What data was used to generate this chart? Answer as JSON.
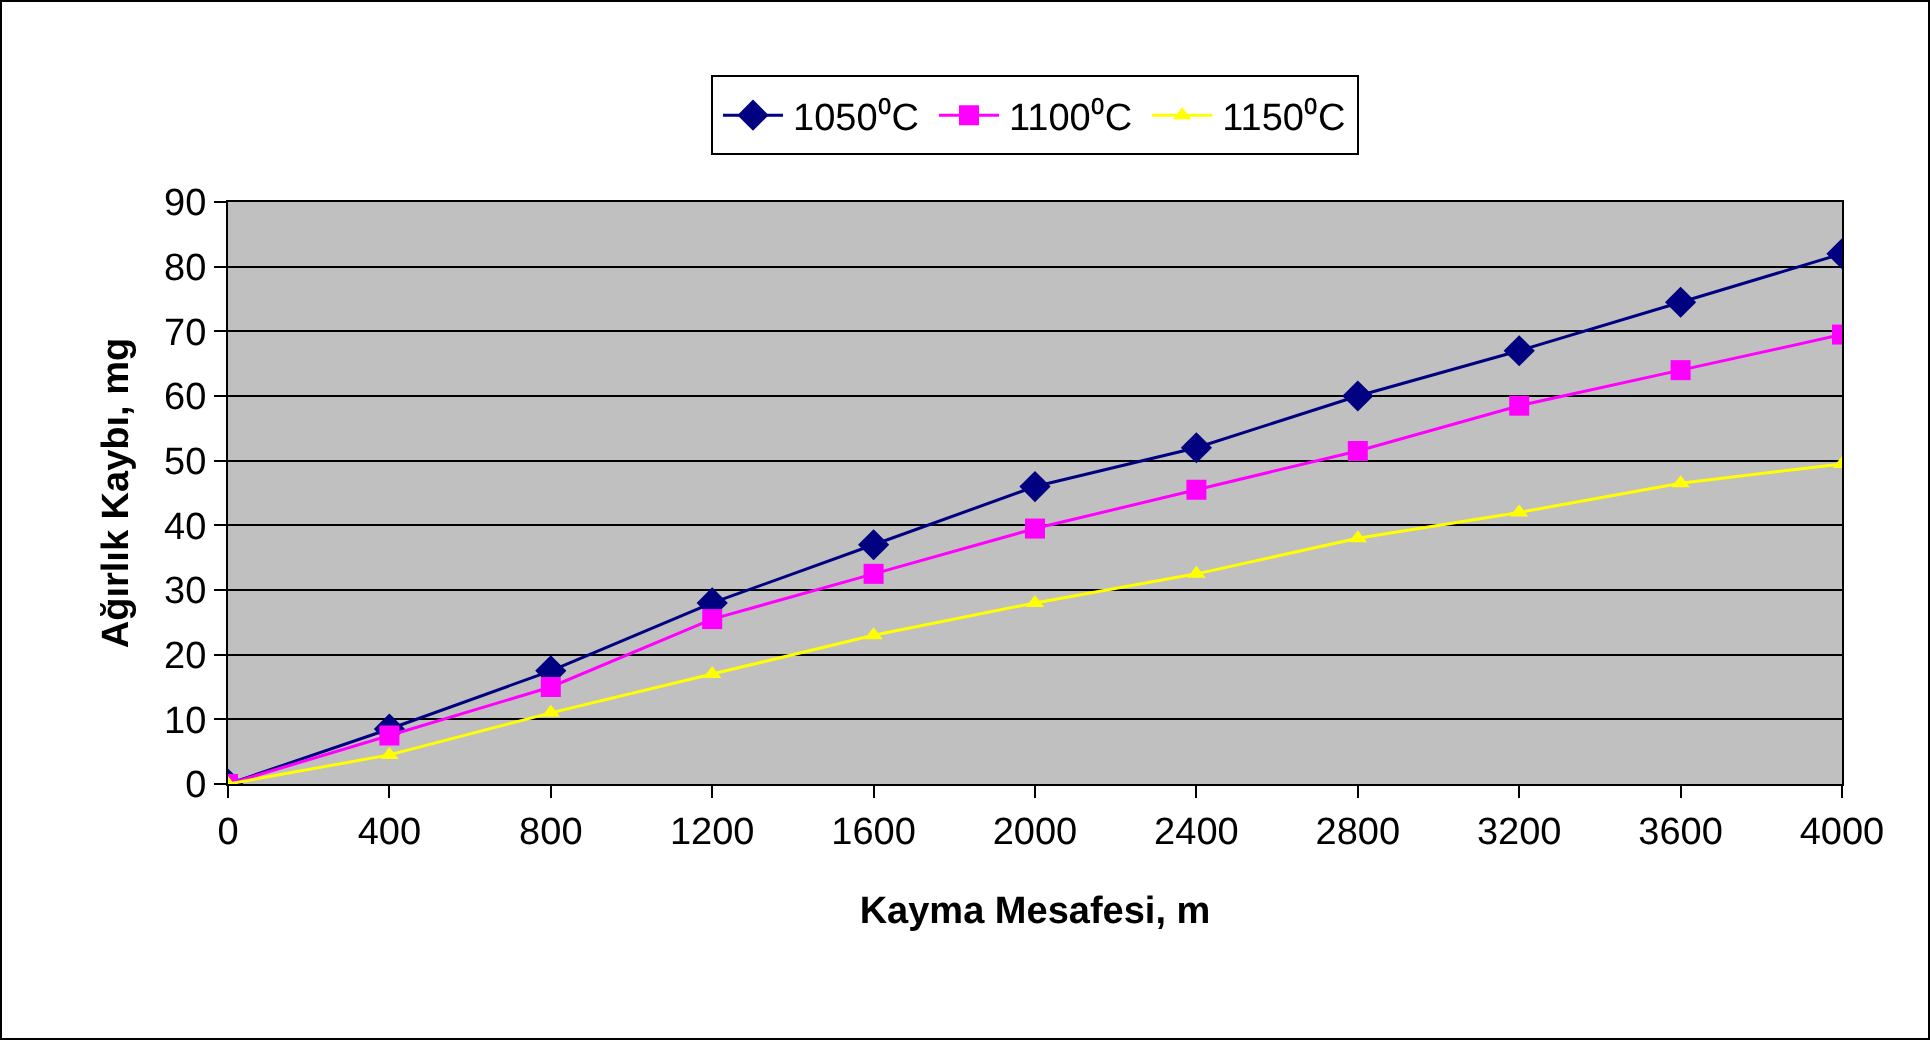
{
  "chart_data": {
    "type": "line",
    "xlabel": "Kayma Mesafesi, m",
    "ylabel": "Ağırlık Kaybı, mg",
    "x": [
      0,
      400,
      800,
      1200,
      1600,
      2000,
      2400,
      2800,
      3200,
      3600,
      4000
    ],
    "series": [
      {
        "name": "1050⁰C",
        "color": "#000080",
        "marker": "diamond",
        "values": [
          0,
          8.5,
          17.5,
          28,
          37,
          46,
          52,
          60,
          67,
          74.5,
          82
        ]
      },
      {
        "name": "1100⁰C",
        "color": "#ff00ff",
        "marker": "square",
        "values": [
          0,
          7.5,
          15,
          25.5,
          32.5,
          39.5,
          45.5,
          51.5,
          58.5,
          64,
          69.5
        ]
      },
      {
        "name": "1150⁰C",
        "color": "#ffff00",
        "marker": "triangle",
        "values": [
          0,
          4.5,
          11,
          17,
          23,
          28,
          32.5,
          38,
          42,
          46.5,
          49.5
        ]
      }
    ],
    "xlim": [
      0,
      4000
    ],
    "xticks": [
      0,
      400,
      800,
      1200,
      1600,
      2000,
      2400,
      2800,
      3200,
      3600,
      4000
    ],
    "ylim": [
      0,
      90
    ],
    "yticks": [
      0,
      10,
      20,
      30,
      40,
      50,
      60,
      70,
      80,
      90
    ],
    "grid": "y",
    "legend": "top",
    "line_style": "solid"
  }
}
